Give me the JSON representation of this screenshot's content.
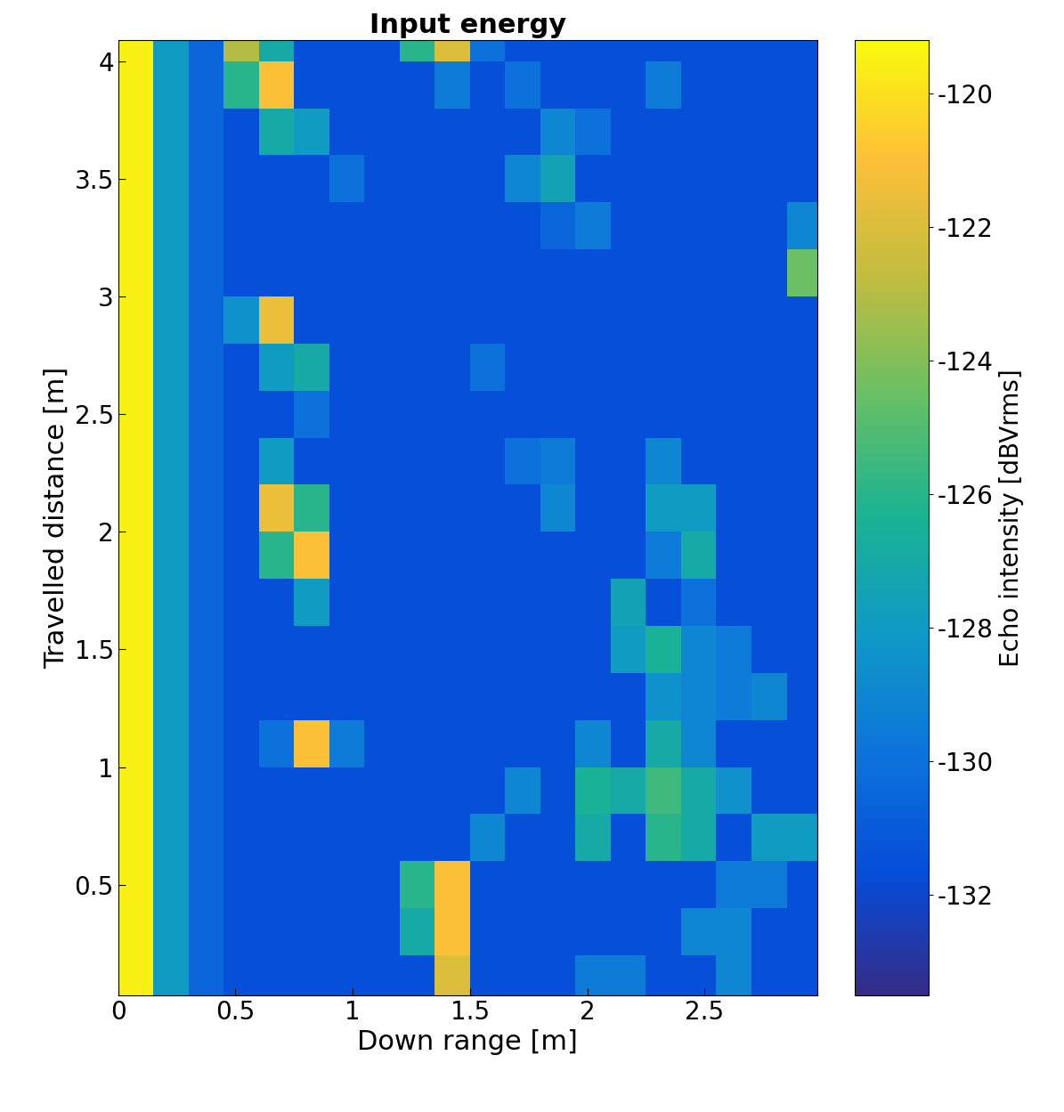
{
  "chart_data": {
    "type": "heatmap",
    "title": "Input energy",
    "x_label": "Down range [m]",
    "y_label": "Travelled distance [m]",
    "xlim": [
      0,
      2.98
    ],
    "ylim": [
      0.03,
      4.09
    ],
    "xticks": [
      0,
      0.5,
      1,
      1.5,
      2,
      2.5
    ],
    "yticks": [
      0.5,
      1,
      1.5,
      2,
      2.5,
      3,
      3.5,
      4
    ],
    "x_edges": [
      0,
      0.15,
      0.3,
      0.45,
      0.6,
      0.75,
      0.9,
      1.05,
      1.2,
      1.35,
      1.5,
      1.65,
      1.8,
      1.95,
      2.1,
      2.25,
      2.4,
      2.55,
      2.7,
      2.85,
      3.0
    ],
    "y_edges": [
      0,
      0.2,
      0.4,
      0.6,
      0.8,
      1.0,
      1.2,
      1.4,
      1.6,
      1.8,
      2.0,
      2.2,
      2.4,
      2.6,
      2.8,
      3.0,
      3.2,
      3.4,
      3.6,
      3.8,
      4.0,
      4.2
    ],
    "cells": [
      [
        -119.5,
        -128,
        -130.5,
        -131.5,
        -131.5,
        -131.5,
        -131.5,
        -131.5,
        -131.5,
        -122,
        -131.5,
        -131.5,
        -131.5,
        -129.5,
        -129.5,
        -131.5,
        -131.5,
        -129,
        -131.5,
        -131.5
      ],
      [
        -119.5,
        -128,
        -130.5,
        -131.5,
        -131.5,
        -131.5,
        -131.5,
        -131.5,
        -127,
        -121,
        -131.5,
        -131.5,
        -131.5,
        -131.5,
        -131.5,
        -131.5,
        -129,
        -129,
        -131.5,
        -131.5
      ],
      [
        -119.5,
        -128,
        -130.5,
        -131.5,
        -131.5,
        -131.5,
        -131.5,
        -131.5,
        -126,
        -121,
        -131.5,
        -131.5,
        -131.5,
        -131.5,
        -131.5,
        -131.5,
        -131.5,
        -129.5,
        -129.5,
        -131.5
      ],
      [
        -119.5,
        -128,
        -130.5,
        -131.5,
        -131.5,
        -131.5,
        -131.5,
        -131.5,
        -131.5,
        -131.5,
        -129,
        -131.5,
        -131.5,
        -127,
        -131.5,
        -126,
        -127,
        -131.5,
        -128,
        -128
      ],
      [
        -119.5,
        -128,
        -130.5,
        -131.5,
        -131.5,
        -131.5,
        -131.5,
        -131.5,
        -131.5,
        -131.5,
        -131.5,
        -129,
        -131.5,
        -126.5,
        -127,
        -125.5,
        -127,
        -128.5,
        -131.5,
        -131.5
      ],
      [
        -119.5,
        -128,
        -130.5,
        -131.5,
        -130,
        -121,
        -129.5,
        -131.5,
        -131.5,
        -131.5,
        -131.5,
        -131.5,
        -131.5,
        -129,
        -131.5,
        -127,
        -129,
        -131.5,
        -131.5,
        -131.5
      ],
      [
        -119.5,
        -128,
        -130.5,
        -131.5,
        -131.5,
        -131.5,
        -131.5,
        -131.5,
        -131.5,
        -131.5,
        -131.5,
        -131.5,
        -131.5,
        -131.5,
        -131.5,
        -128.5,
        -129,
        -129.5,
        -129,
        -131.5
      ],
      [
        -119.5,
        -128,
        -130.5,
        -131.5,
        -131.5,
        -131.5,
        -131.5,
        -131.5,
        -131.5,
        -131.5,
        -131.5,
        -131.5,
        -131.5,
        -131.5,
        -128,
        -126.5,
        -129,
        -129.5,
        -131.5,
        -131.5
      ],
      [
        -119.5,
        -128,
        -130.5,
        -131.5,
        -131.5,
        -128,
        -131.5,
        -131.5,
        -131.5,
        -131.5,
        -131.5,
        -131.5,
        -131.5,
        -131.5,
        -127.5,
        -131.5,
        -130,
        -131.5,
        -131.5,
        -131.5
      ],
      [
        -119.5,
        -128,
        -130.5,
        -131.5,
        -126,
        -121,
        -131.5,
        -131.5,
        -131.5,
        -131.5,
        -131.5,
        -131.5,
        -131.5,
        -131.5,
        -131.5,
        -129.5,
        -127,
        -131.5,
        -131.5,
        -131.5
      ],
      [
        -119.5,
        -128,
        -130.5,
        -131.5,
        -121.5,
        -126,
        -131.5,
        -131.5,
        -131.5,
        -131.5,
        -131.5,
        -131.5,
        -129,
        -131.5,
        -131.5,
        -128,
        -128,
        -131.5,
        -131.5,
        -131.5
      ],
      [
        -119.5,
        -128,
        -130.5,
        -131.5,
        -128,
        -131.5,
        -131.5,
        -131.5,
        -131.5,
        -131.5,
        -131.5,
        -130,
        -129.5,
        -131.5,
        -131.5,
        -129,
        -131.5,
        -131.5,
        -131.5,
        -131.5
      ],
      [
        -119.5,
        -128,
        -130.5,
        -131.5,
        -131.5,
        -130,
        -131.5,
        -131.5,
        -131.5,
        -131.5,
        -131.5,
        -131.5,
        -131.5,
        -131.5,
        -131.5,
        -131.5,
        -131.5,
        -131.5,
        -131.5,
        -131.5
      ],
      [
        -119.5,
        -128,
        -130.5,
        -131.5,
        -128,
        -127,
        -131.5,
        -131.5,
        -131.5,
        -131.5,
        -130,
        -131.5,
        -131.5,
        -131.5,
        -131.5,
        -131.5,
        -131.5,
        -131.5,
        -131.5,
        -131.5
      ],
      [
        -119.5,
        -128,
        -130.5,
        -128.5,
        -121.5,
        -131.5,
        -131.5,
        -131.5,
        -131.5,
        -131.5,
        -131.5,
        -131.5,
        -131.5,
        -131.5,
        -131.5,
        -131.5,
        -131.5,
        -131.5,
        -131.5,
        -131.5
      ],
      [
        -119.5,
        -128,
        -130.5,
        -131.5,
        -131.5,
        -131.5,
        -131.5,
        -131.5,
        -131.5,
        -131.5,
        -131.5,
        -131.5,
        -131.5,
        -131.5,
        -131.5,
        -131.5,
        -131.5,
        -131.5,
        -131.5,
        -124.5
      ],
      [
        -119.5,
        -128,
        -130.5,
        -131.5,
        -131.5,
        -131.5,
        -131.5,
        -131.5,
        -131.5,
        -131.5,
        -131.5,
        -131.5,
        -130.5,
        -129.5,
        -131.5,
        -131.5,
        -131.5,
        -131.5,
        -131.5,
        -129
      ],
      [
        -119.5,
        -128,
        -130.5,
        -131.5,
        -131.5,
        -131.5,
        -130,
        -131.5,
        -131.5,
        -131.5,
        -131.5,
        -129,
        -127.5,
        -131.5,
        -131.5,
        -131.5,
        -131.5,
        -131.5,
        -131.5,
        -131.5
      ],
      [
        -119.5,
        -128,
        -130.5,
        -131.5,
        -127,
        -128,
        -131.5,
        -131.5,
        -131.5,
        -131.5,
        -131.5,
        -131.5,
        -129,
        -130,
        -131.5,
        -131.5,
        -131.5,
        -131.5,
        -131.5,
        -131.5
      ],
      [
        -119.5,
        -128,
        -130.5,
        -126,
        -121,
        -131.5,
        -131.5,
        -131.5,
        -131.5,
        -129.5,
        -131.5,
        -130,
        -131.5,
        -131.5,
        -131.5,
        -129.5,
        -131.5,
        -131.5,
        -131.5,
        -131.5
      ],
      [
        -119.5,
        -128,
        -130.5,
        -123,
        -127,
        -131.5,
        -131.5,
        -131.5,
        -126,
        -122,
        -130,
        -131.5,
        -131.5,
        -131.5,
        -131.5,
        -131.5,
        -131.5,
        -131.5,
        -131.5,
        -131.5
      ]
    ],
    "colorbar": {
      "label": "Echo intensity [dBVrms]",
      "lim": [
        -133.5,
        -119.2
      ],
      "ticks": [
        -120,
        -122,
        -124,
        -126,
        -128,
        -130,
        -132
      ]
    }
  }
}
